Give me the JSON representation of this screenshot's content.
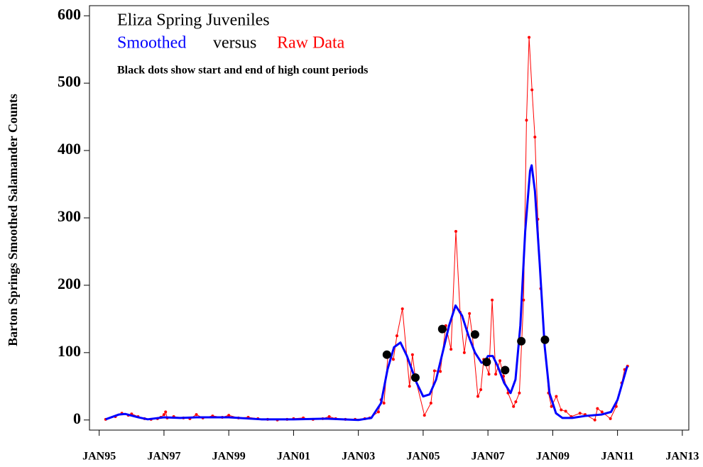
{
  "chart_data": {
    "type": "line",
    "title": "Eliza Spring Juveniles",
    "subtitle_join": "versus",
    "note": "Black dots show start and end of high count periods",
    "y_label": "Barton Springs Smoothed Salamander Counts",
    "xlim": [
      1994.7,
      2013.2
    ],
    "ylim": [
      -15,
      615
    ],
    "xticks": [
      {
        "value": 1995,
        "label": "JAN95"
      },
      {
        "value": 1997,
        "label": "JAN97"
      },
      {
        "value": 1999,
        "label": "JAN99"
      },
      {
        "value": 2001,
        "label": "JAN01"
      },
      {
        "value": 2003,
        "label": "JAN03"
      },
      {
        "value": 2005,
        "label": "JAN05"
      },
      {
        "value": 2007,
        "label": "JAN07"
      },
      {
        "value": 2009,
        "label": "JAN09"
      },
      {
        "value": 2011,
        "label": "JAN11"
      },
      {
        "value": 2013,
        "label": "JAN13"
      }
    ],
    "yticks": [
      0,
      100,
      200,
      300,
      400,
      500,
      600
    ],
    "series": [
      {
        "name": "Raw Data",
        "color": "#ff0000",
        "x": [
          1995.2,
          1995.5,
          1995.7,
          1995.9,
          1996.0,
          1996.2,
          1996.4,
          1996.6,
          1996.8,
          1996.9,
          1997.0,
          1997.05,
          1997.1,
          1997.3,
          1997.6,
          1997.8,
          1998.0,
          1998.2,
          1998.5,
          1998.8,
          1999.0,
          1999.3,
          1999.6,
          1999.9,
          2000.2,
          2000.5,
          2000.8,
          2001.0,
          2001.3,
          2001.6,
          2001.9,
          2002.1,
          2002.3,
          2002.6,
          2002.9,
          2003.2,
          2003.35,
          2003.62,
          2003.7,
          2003.79,
          2003.92,
          2004.08,
          2004.19,
          2004.36,
          2004.58,
          2004.67,
          2004.76,
          2005.04,
          2005.24,
          2005.35,
          2005.53,
          2005.7,
          2005.86,
          2006.01,
          2006.14,
          2006.27,
          2006.43,
          2006.52,
          2006.69,
          2006.78,
          2006.87,
          2007.03,
          2007.13,
          2007.24,
          2007.37,
          2007.48,
          2007.62,
          2007.79,
          2007.86,
          2007.97,
          2008.1,
          2008.19,
          2008.27,
          2008.36,
          2008.45,
          2008.54,
          2008.63,
          2008.87,
          2008.96,
          2009.11,
          2009.26,
          2009.4,
          2009.57,
          2009.84,
          2010.0,
          2010.3,
          2010.38,
          2010.52,
          2010.78,
          2010.96,
          2011.13,
          2011.22,
          2011.31
        ],
        "values": [
          1,
          5,
          10,
          7,
          9,
          5,
          2,
          1,
          2,
          4,
          8,
          12,
          3,
          5,
          3,
          2,
          8,
          3,
          6,
          4,
          7,
          3,
          4,
          2,
          1,
          0,
          1,
          2,
          3,
          1,
          2,
          5,
          2,
          1,
          1,
          2,
          3,
          12,
          30,
          25,
          100,
          90,
          125,
          165,
          50,
          97,
          62,
          7,
          25,
          73,
          72,
          140,
          105,
          280,
          160,
          100,
          158,
          125,
          35,
          45,
          90,
          68,
          178,
          68,
          88,
          65,
          40,
          20,
          27,
          40,
          178,
          445,
          568,
          490,
          420,
          298,
          195,
          40,
          20,
          35,
          15,
          13,
          5,
          10,
          8,
          0,
          17,
          12,
          2,
          20,
          55,
          75,
          80
        ]
      },
      {
        "name": "Smoothed",
        "color": "#0000ff",
        "x": [
          1995.2,
          1995.6,
          1995.8,
          1996.2,
          1996.5,
          1997.0,
          1997.5,
          1998.0,
          1999.0,
          2000.0,
          2001.0,
          2002.0,
          2003.0,
          2003.4,
          2003.7,
          2003.9,
          2004.1,
          2004.3,
          2004.5,
          2004.8,
          2005.0,
          2005.2,
          2005.4,
          2005.6,
          2005.8,
          2006.0,
          2006.2,
          2006.4,
          2006.6,
          2006.8,
          2006.9,
          2007.0,
          2007.15,
          2007.3,
          2007.5,
          2007.7,
          2007.85,
          2008.0,
          2008.15,
          2008.3,
          2008.35,
          2008.45,
          2008.6,
          2008.75,
          2008.9,
          2009.1,
          2009.3,
          2009.6,
          2010.0,
          2010.5,
          2010.8,
          2011.0,
          2011.3
        ],
        "values": [
          1,
          8,
          9,
          4,
          1,
          4,
          3,
          4,
          4,
          1,
          1,
          2,
          0,
          3,
          25,
          75,
          108,
          115,
          95,
          55,
          35,
          38,
          60,
          100,
          140,
          170,
          155,
          125,
          100,
          85,
          86,
          95,
          95,
          80,
          55,
          40,
          60,
          140,
          280,
          370,
          378,
          340,
          230,
          110,
          40,
          10,
          3,
          3,
          6,
          8,
          12,
          30,
          80
        ]
      },
      {
        "color": "#000000",
        "x": [
          2003.88,
          2004.76,
          2005.59,
          2006.6,
          2006.96,
          2007.53,
          2008.03,
          2008.76
        ],
        "values": [
          97,
          63,
          135,
          127,
          86,
          74,
          117,
          119
        ]
      }
    ]
  }
}
